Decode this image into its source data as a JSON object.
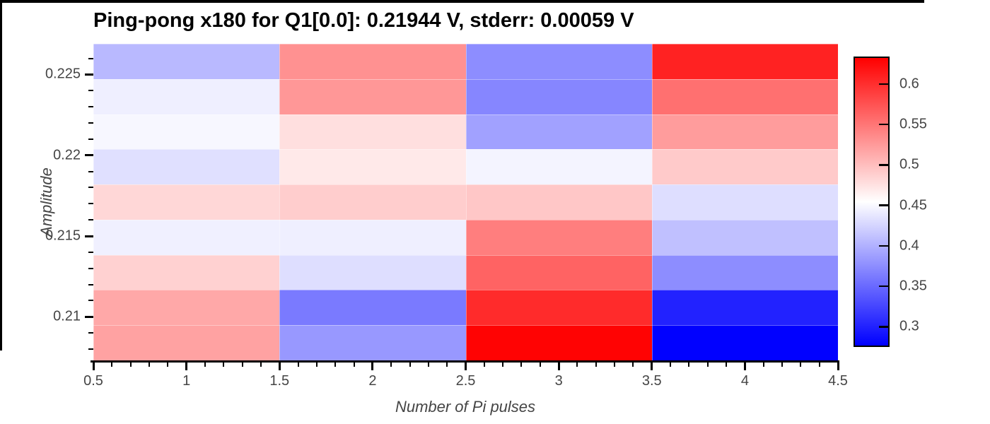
{
  "chart_data": {
    "type": "heatmap",
    "title": "Ping-pong x180 for Q1[0.0]: 0.21944 V, stderr: 0.00059 V",
    "xlabel": "Number of Pi pulses",
    "ylabel": "Amplitude",
    "x_range": [
      0.5,
      4.5
    ],
    "y_range": [
      0.2073,
      0.2269
    ],
    "x_centers": [
      1,
      2,
      3,
      4
    ],
    "y_centers_top_to_bottom": [
      0.2257,
      0.2235,
      0.2213,
      0.2192,
      0.217,
      0.2148,
      0.2127,
      0.2105,
      0.2083
    ],
    "values_rows_top_to_bottom": [
      [
        0.405,
        0.532,
        0.374,
        0.61
      ],
      [
        0.443,
        0.528,
        0.369,
        0.555
      ],
      [
        0.449,
        0.477,
        0.388,
        0.524
      ],
      [
        0.433,
        0.47,
        0.447,
        0.492
      ],
      [
        0.483,
        0.49,
        0.494,
        0.431
      ],
      [
        0.444,
        0.443,
        0.545,
        0.41
      ],
      [
        0.487,
        0.431,
        0.564,
        0.374
      ],
      [
        0.516,
        0.361,
        0.604,
        0.299
      ],
      [
        0.52,
        0.382,
        0.632,
        0.276
      ]
    ],
    "x_tick_values": [
      0.5,
      1,
      1.5,
      2,
      2.5,
      3,
      3.5,
      4,
      4.5
    ],
    "x_tick_labels": [
      "0.5",
      "1",
      "1.5",
      "2",
      "2.5",
      "3",
      "3.5",
      "4",
      "4.5"
    ],
    "x_minor_tick_step": 0.1,
    "y_tick_values": [
      0.225,
      0.22,
      0.215,
      0.21
    ],
    "y_tick_labels": [
      "0.225",
      "0.22",
      "0.215",
      "0.21"
    ],
    "y_minor_tick_step": 0.001,
    "grid": false,
    "colorbar": {
      "colormap": "bwr",
      "vmin": 0.275,
      "vmax": 0.634,
      "tick_values": [
        0.6,
        0.55,
        0.5,
        0.45,
        0.4,
        0.35,
        0.3
      ],
      "tick_labels": [
        "0.6",
        "0.55",
        "0.5",
        "0.45",
        "0.4",
        "0.35",
        "0.3"
      ]
    },
    "styles": {
      "tick_color": "#000000",
      "label_color": "#454545",
      "title_color": "#000000",
      "color_low": "#0000ff",
      "color_mid": "#ffffff",
      "color_high": "#ff0000"
    }
  }
}
